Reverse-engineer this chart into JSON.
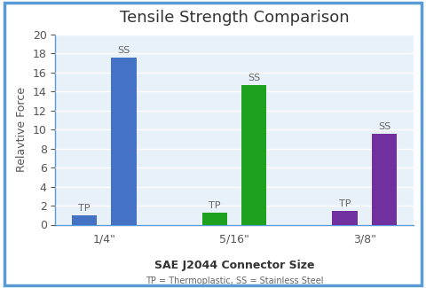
{
  "title": "Tensile Strength Comparison",
  "xlabel": "SAE J2044 Connector Size",
  "xlabel_sub": "TP = Thermoplastic, SS = Stainless Steel",
  "ylabel": "Relavtive Force",
  "ylim": [
    0,
    20
  ],
  "yticks": [
    0,
    2,
    4,
    6,
    8,
    10,
    12,
    14,
    16,
    18,
    20
  ],
  "groups": [
    "1/4\"",
    "5/16\"",
    "3/8\""
  ],
  "tp_values": [
    1.0,
    1.3,
    1.45
  ],
  "ss_values": [
    17.6,
    14.7,
    9.6
  ],
  "colors": {
    "group1": "#4472C4",
    "group2": "#1EA11E",
    "group3": "#7030A0"
  },
  "plot_bg_color": "#E8F0F8",
  "fig_bg_color": "#FFFFFF",
  "border_color": "#5B9BD5",
  "grid_color": "#FFFFFF",
  "bar_width": 0.22,
  "title_fontsize": 13,
  "label_fontsize": 9,
  "tick_fontsize": 9,
  "annotation_fontsize": 8,
  "group_positions": [
    0.5,
    1.65,
    2.8
  ],
  "bar_gap": 0.13
}
